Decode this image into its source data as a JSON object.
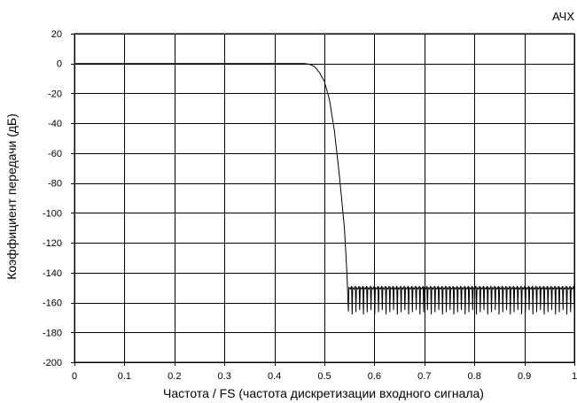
{
  "chart_data": {
    "type": "line",
    "title": "АЧХ",
    "xlabel": "Частота / FS (частота дискретизации входного сигнала)",
    "ylabel": "Коэффициент передачи (дБ)",
    "xlim": [
      0,
      1
    ],
    "ylim": [
      -200,
      20
    ],
    "x_ticks": [
      "0",
      "0.1",
      "0.2",
      "0.3",
      "0.4",
      "0.5",
      "0.6",
      "0.7",
      "0.8",
      "0.9",
      "1"
    ],
    "y_ticks": [
      "20",
      "0",
      "-20",
      "-40",
      "-60",
      "-80",
      "-100",
      "-120",
      "-140",
      "-160",
      "-180",
      "-200"
    ],
    "grid": true,
    "legend": "none",
    "series": [
      {
        "passband": {
          "x_end": 0.46,
          "value": 0
        },
        "transition": {
          "x": [
            0.46,
            0.47,
            0.48,
            0.49,
            0.5,
            0.51,
            0.52,
            0.53,
            0.54,
            0.545,
            0.548
          ],
          "y": [
            0,
            -0.5,
            -2,
            -6,
            -12,
            -24,
            -45,
            -75,
            -110,
            -140,
            -166
          ]
        },
        "stopband": {
          "x_start": 0.548,
          "x_end": 1.0,
          "upper_db": -151,
          "lower_db": -168,
          "ripple_count": 60
        }
      }
    ]
  }
}
